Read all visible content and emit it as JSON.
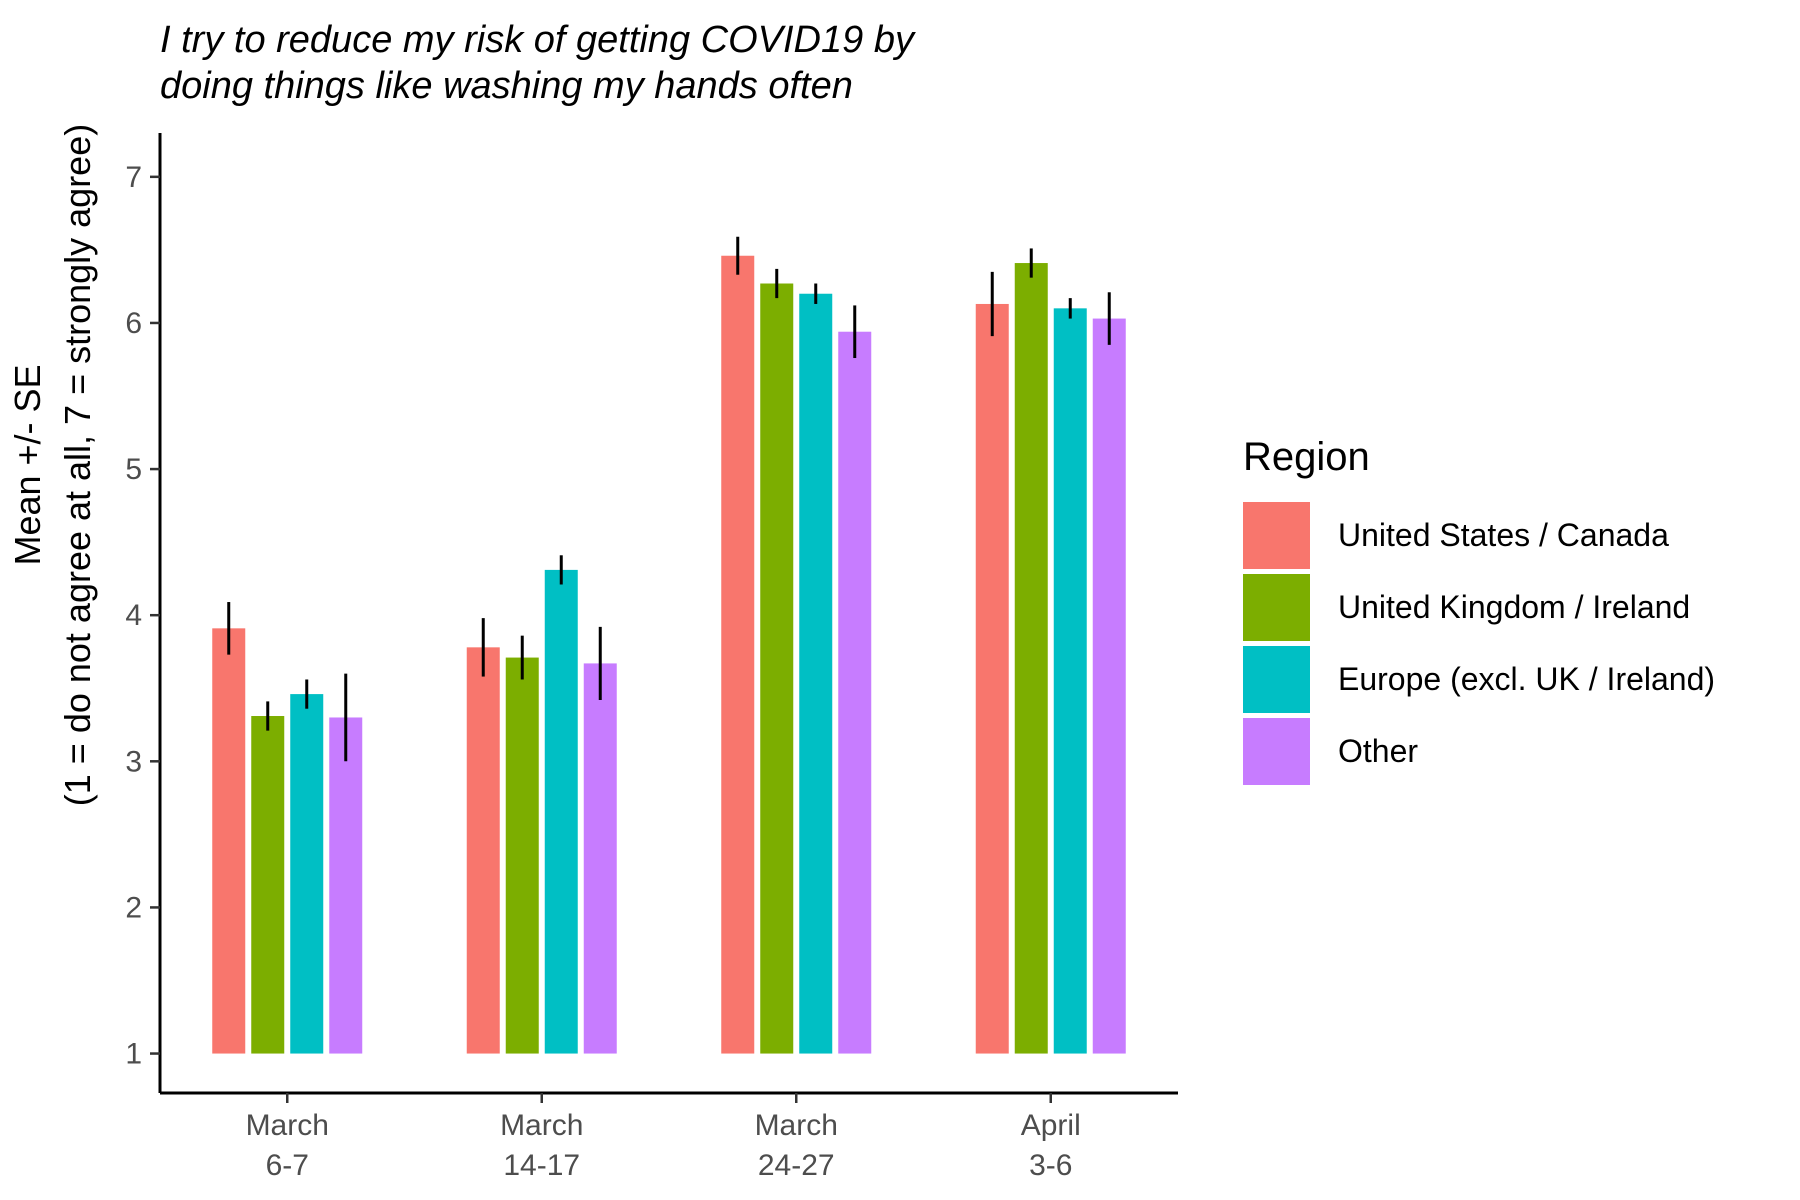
{
  "chart_data": {
    "type": "bar",
    "title_lines": [
      "I try to reduce my risk of getting COVID19 by",
      "doing things like washing my hands often"
    ],
    "ylabel_lines": [
      "Mean +/- SE",
      "(1 = do not agree at all, 7 = strongly agree)"
    ],
    "xlabel": "",
    "categories": [
      [
        "March",
        "6-7"
      ],
      [
        "March",
        "14-17"
      ],
      [
        "March",
        "24-27"
      ],
      [
        "April",
        "3-6"
      ]
    ],
    "yticks": [
      1,
      2,
      3,
      4,
      5,
      6,
      7
    ],
    "ylim": [
      0.73,
      7.3
    ],
    "bar_base": 1,
    "legend": {
      "title": "Region",
      "position": "right"
    },
    "grid": false,
    "series": [
      {
        "name": "United States / Canada",
        "color": "#F8766D",
        "values": [
          3.91,
          3.78,
          6.46,
          6.13
        ],
        "se": [
          0.18,
          0.2,
          0.13,
          0.22
        ]
      },
      {
        "name": "United Kingdom / Ireland",
        "color": "#7CAE00",
        "values": [
          3.31,
          3.71,
          6.27,
          6.41
        ],
        "se": [
          0.1,
          0.15,
          0.1,
          0.1
        ]
      },
      {
        "name": "Europe (excl. UK / Ireland)",
        "color": "#00BFC4",
        "values": [
          3.46,
          4.31,
          6.2,
          6.1
        ],
        "se": [
          0.1,
          0.1,
          0.07,
          0.07
        ]
      },
      {
        "name": "Other",
        "color": "#C77CFF",
        "values": [
          3.3,
          3.67,
          5.94,
          6.03
        ],
        "se": [
          0.3,
          0.25,
          0.18,
          0.18
        ]
      }
    ]
  }
}
